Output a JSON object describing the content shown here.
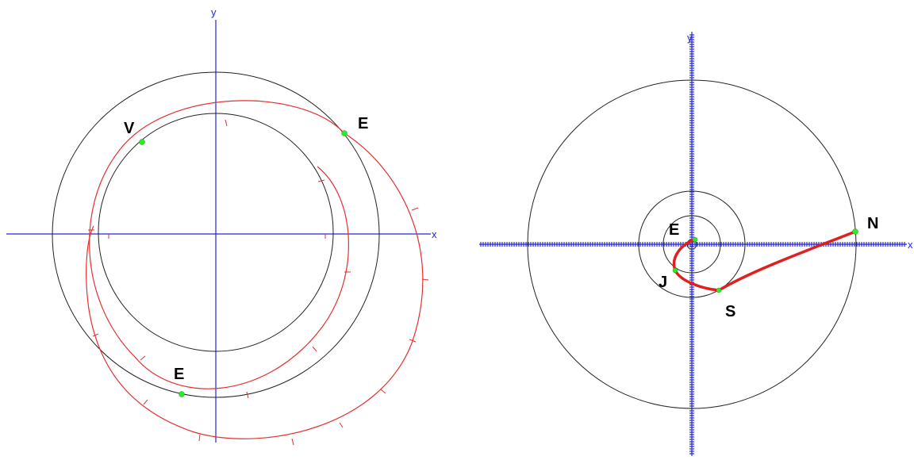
{
  "colors": {
    "axis": "#2626d9",
    "orbit": "#222222",
    "trajectory": "#e53030",
    "planet": "#2ee82e",
    "label": "#000000"
  },
  "left_panel": {
    "axis_x_label": "x",
    "axis_y_label": "y",
    "labels": {
      "venus": "V",
      "earth_right": "E",
      "earth_bottom": "E"
    }
  },
  "right_panel": {
    "axis_x_label": "x",
    "axis_y_label": "y",
    "labels": {
      "earth": "E",
      "jupiter": "J",
      "saturn": "S",
      "neptune": "N"
    }
  }
}
